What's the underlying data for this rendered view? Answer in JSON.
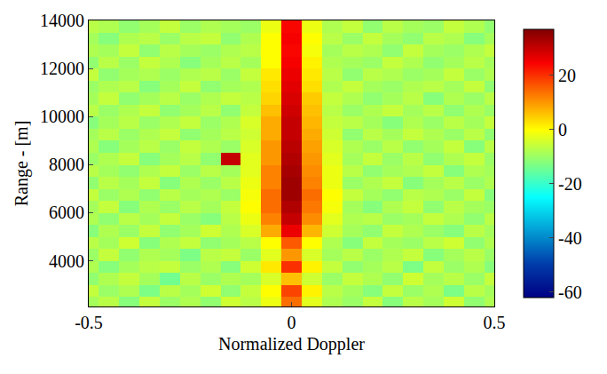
{
  "chart_data": {
    "type": "heatmap",
    "xlabel": "Normalized Doppler",
    "ylabel": "Range - [m]",
    "color": "Jet",
    "x": [
      -0.5,
      -0.45,
      -0.4,
      -0.35,
      -0.3,
      -0.25,
      -0.2,
      -0.15,
      -0.1,
      -0.05,
      0,
      0.05,
      0.1,
      0.15,
      0.2,
      0.25,
      0.3,
      0.35,
      0.4,
      0.45,
      0.5
    ],
    "y": [
      2250,
      2750,
      3250,
      3750,
      4250,
      4750,
      5250,
      5750,
      6250,
      6750,
      7250,
      7750,
      8250,
      8750,
      9250,
      9750,
      10250,
      10750,
      11250,
      11750,
      12250,
      12750,
      13250,
      13750
    ],
    "z": [
      [
        -9,
        -7,
        -12,
        -6,
        -10,
        -8,
        -11,
        -5,
        -7,
        -2,
        14,
        -3,
        -8,
        -10,
        -6,
        -12,
        -7,
        -9,
        -5,
        -11,
        -8
      ],
      [
        -6,
        -10,
        -8,
        -13,
        -7,
        -9,
        -5,
        -11,
        -6,
        0,
        18,
        1,
        -7,
        -9,
        -12,
        -6,
        -10,
        -8,
        -13,
        -7,
        -9
      ],
      [
        -11,
        -8,
        -6,
        -9,
        -14,
        -7,
        -10,
        -8,
        -9,
        -4,
        6,
        -5,
        -10,
        -6,
        -8,
        -11,
        -5,
        -9,
        -7,
        -10,
        -6
      ],
      [
        -8,
        -12,
        -9,
        -7,
        -6,
        -10,
        -8,
        -12,
        -5,
        2,
        20,
        1,
        -6,
        -11,
        -9,
        -7,
        -13,
        -6,
        -10,
        -8,
        -12
      ],
      [
        -10,
        -6,
        -11,
        -8,
        -9,
        -13,
        -7,
        -6,
        -10,
        -3,
        10,
        -4,
        -9,
        -7,
        -10,
        -8,
        -6,
        -12,
        -9,
        -7,
        -10
      ],
      [
        -7,
        -9,
        -5,
        -12,
        -8,
        -6,
        -11,
        -9,
        -7,
        0,
        16,
        0,
        -8,
        -12,
        -6,
        -9,
        -10,
        -7,
        -5,
        -11,
        -8
      ],
      [
        -12,
        -8,
        -10,
        -6,
        -11,
        -9,
        -5,
        -8,
        -4,
        8,
        26,
        7,
        -5,
        -9,
        -11,
        -6,
        -8,
        -10,
        -12,
        -7,
        -9
      ],
      [
        -8,
        -11,
        -7,
        -9,
        -6,
        -10,
        -12,
        -7,
        -2,
        12,
        30,
        11,
        -3,
        -8,
        -7,
        -10,
        -9,
        -6,
        -8,
        -11,
        -7
      ],
      [
        -9,
        -6,
        -12,
        -8,
        -10,
        -7,
        -9,
        -6,
        0,
        14,
        32,
        13,
        -1,
        -9,
        -12,
        -8,
        -6,
        -11,
        -7,
        -9,
        -10
      ],
      [
        -6,
        -10,
        -8,
        -11,
        -7,
        -9,
        -8,
        -10,
        -1,
        14,
        34,
        14,
        0,
        -6,
        -9,
        -11,
        -7,
        -8,
        -10,
        -6,
        -12
      ],
      [
        -11,
        -7,
        -9,
        -6,
        -12,
        -8,
        -10,
        -7,
        -2,
        12,
        34,
        12,
        -2,
        -10,
        -8,
        -6,
        -12,
        -9,
        -7,
        -10,
        -8
      ],
      [
        -7,
        -9,
        -11,
        -8,
        -6,
        -10,
        -7,
        -9,
        -3,
        12,
        33,
        11,
        -2,
        -7,
        -11,
        -9,
        -8,
        -6,
        -12,
        -8,
        -9
      ],
      [
        -10,
        -8,
        -6,
        -12,
        -9,
        -7,
        -11,
        30,
        -3,
        10,
        32,
        10,
        -3,
        -9,
        -6,
        -10,
        -7,
        -11,
        -8,
        -6,
        -10
      ],
      [
        -8,
        -12,
        -9,
        -7,
        -10,
        -6,
        -8,
        -10,
        -4,
        10,
        31,
        9,
        -4,
        -8,
        -10,
        -7,
        -11,
        -9,
        -6,
        -12,
        -7
      ],
      [
        -9,
        -7,
        -10,
        -8,
        -6,
        -11,
        -9,
        -7,
        -5,
        8,
        30,
        8,
        -5,
        -11,
        -7,
        -9,
        -6,
        -8,
        -10,
        -7,
        -11
      ],
      [
        -12,
        -9,
        -7,
        -10,
        -8,
        -6,
        -10,
        -8,
        -4,
        8,
        30,
        7,
        -6,
        -7,
        -9,
        -12,
        -8,
        -10,
        -7,
        -9,
        -6
      ],
      [
        -7,
        -10,
        -8,
        -6,
        -11,
        -9,
        -7,
        -11,
        -6,
        6,
        29,
        6,
        -7,
        -10,
        -8,
        -6,
        -9,
        -7,
        -11,
        -8,
        -10
      ],
      [
        -9,
        -6,
        -11,
        -9,
        -7,
        -10,
        -8,
        -6,
        -7,
        4,
        28,
        5,
        -6,
        -8,
        -11,
        -9,
        -7,
        -12,
        -8,
        -10,
        -7
      ],
      [
        -10,
        -8,
        -7,
        -12,
        -9,
        -6,
        -11,
        -9,
        -8,
        3,
        27,
        3,
        -8,
        -6,
        -9,
        -10,
        -8,
        -7,
        -9,
        -6,
        -11
      ],
      [
        -6,
        -11,
        -9,
        -8,
        -10,
        -8,
        -7,
        -10,
        -6,
        2,
        26,
        2,
        -7,
        -11,
        -7,
        -8,
        -10,
        -9,
        -6,
        -10,
        -8
      ],
      [
        -11,
        -7,
        -10,
        -6,
        -8,
        -12,
        -9,
        -7,
        -9,
        0,
        25,
        1,
        -8,
        -9,
        -10,
        -6,
        -8,
        -11,
        -9,
        -7,
        -9
      ],
      [
        -8,
        -9,
        -6,
        -11,
        -7,
        -9,
        -10,
        -8,
        -7,
        0,
        24,
        -1,
        -9,
        -7,
        -8,
        -11,
        -6,
        -9,
        -10,
        -8,
        -6
      ],
      [
        -9,
        -12,
        -8,
        -7,
        -10,
        -7,
        -6,
        -11,
        -8,
        0,
        25,
        0,
        -7,
        -10,
        -6,
        -9,
        -11,
        -7,
        -8,
        -12,
        -9
      ],
      [
        -7,
        -8,
        -11,
        -9,
        -6,
        -10,
        -8,
        -9,
        -10,
        -2,
        24,
        -2,
        -8,
        -6,
        -11,
        -7,
        -9,
        -10,
        -6,
        -8,
        -11
      ]
    ],
    "xlim": [
      -0.5,
      0.5
    ],
    "ylim": [
      2100,
      14000
    ],
    "xticks": [
      -0.5,
      0,
      0.5
    ],
    "yticks": [
      4000,
      6000,
      8000,
      10000,
      12000,
      14000
    ],
    "zlim": [
      -62,
      37
    ],
    "zticks": [
      -60,
      -40,
      -20,
      0,
      20
    ]
  }
}
